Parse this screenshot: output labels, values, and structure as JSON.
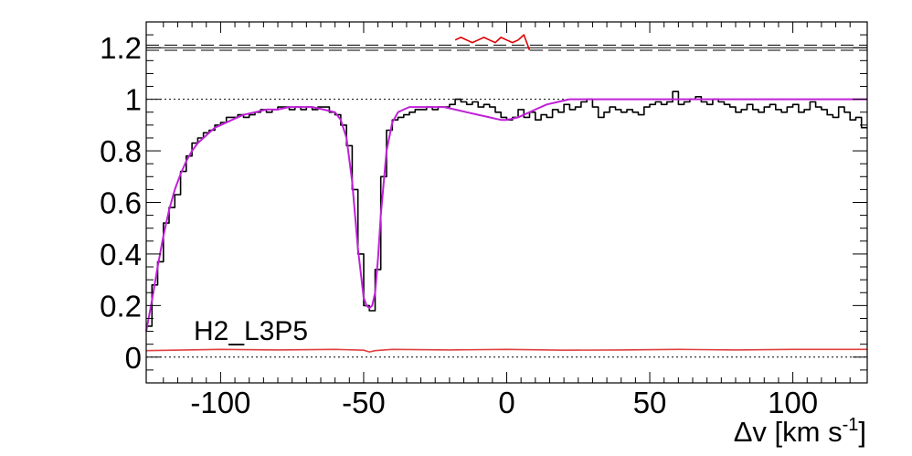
{
  "chart_data": {
    "type": "line",
    "annotation": "H2_L3P5",
    "xlim": [
      -126,
      126
    ],
    "ylim": [
      -0.1,
      1.3
    ],
    "x_ticks": [
      -100,
      -50,
      0,
      50,
      100
    ],
    "y_ticks": [
      0,
      0.2,
      0.4,
      0.6,
      0.8,
      1,
      1.2
    ],
    "x_tick_labels": [
      "-100",
      "-50",
      "0",
      "50",
      "100"
    ],
    "y_tick_labels": [
      "0",
      "0.2",
      "0.4",
      "0.6",
      "0.8",
      "1",
      "1.2"
    ],
    "reference_lines": [
      {
        "y": 1.0,
        "style": "dotted"
      },
      {
        "y": 0.0,
        "style": "dotted"
      },
      {
        "y": 1.21,
        "style": "dashed"
      },
      {
        "y": 1.19,
        "style": "dashed"
      },
      {
        "y": 1.2,
        "style": "solid"
      }
    ],
    "series": [
      {
        "style": "step",
        "color": "#000000",
        "x": [
          -126,
          -124,
          -122,
          -120,
          -118,
          -116,
          -114,
          -112,
          -110,
          -108,
          -106,
          -104,
          -102,
          -100,
          -98,
          -96,
          -94,
          -92,
          -90,
          -88,
          -86,
          -84,
          -82,
          -80,
          -78,
          -76,
          -74,
          -72,
          -70,
          -68,
          -66,
          -64,
          -62,
          -60,
          -58,
          -56,
          -54,
          -52,
          -50,
          -48,
          -46,
          -44,
          -42,
          -40,
          -38,
          -36,
          -34,
          -32,
          -30,
          -28,
          -26,
          -24,
          -22,
          -20,
          -18,
          -16,
          -14,
          -12,
          -10,
          -8,
          -6,
          -4,
          -2,
          0,
          2,
          4,
          6,
          8,
          10,
          12,
          14,
          16,
          18,
          20,
          22,
          24,
          26,
          28,
          30,
          32,
          34,
          36,
          38,
          40,
          42,
          44,
          46,
          48,
          50,
          52,
          54,
          56,
          58,
          60,
          62,
          64,
          66,
          68,
          70,
          72,
          74,
          76,
          78,
          80,
          82,
          84,
          86,
          88,
          90,
          92,
          94,
          96,
          98,
          100,
          102,
          104,
          106,
          108,
          110,
          112,
          114,
          116,
          118,
          120,
          122,
          124
        ],
        "y": [
          0.12,
          0.28,
          0.37,
          0.52,
          0.58,
          0.63,
          0.72,
          0.78,
          0.83,
          0.85,
          0.87,
          0.88,
          0.9,
          0.91,
          0.93,
          0.93,
          0.94,
          0.93,
          0.94,
          0.95,
          0.96,
          0.95,
          0.96,
          0.97,
          0.97,
          0.96,
          0.97,
          0.96,
          0.97,
          0.96,
          0.97,
          0.97,
          0.95,
          0.94,
          0.9,
          0.82,
          0.65,
          0.4,
          0.2,
          0.18,
          0.34,
          0.7,
          0.88,
          0.92,
          0.93,
          0.94,
          0.95,
          0.96,
          0.96,
          0.97,
          0.96,
          0.97,
          0.97,
          0.98,
          1.0,
          0.99,
          0.98,
          0.99,
          0.97,
          0.98,
          0.97,
          0.95,
          0.93,
          0.92,
          0.93,
          0.96,
          0.93,
          0.95,
          0.92,
          0.94,
          0.93,
          0.96,
          0.95,
          0.98,
          0.96,
          0.97,
          0.99,
          1.0,
          0.97,
          0.93,
          0.95,
          0.97,
          0.96,
          0.95,
          0.96,
          0.95,
          0.94,
          0.97,
          0.98,
          0.99,
          0.98,
          0.99,
          1.03,
          0.98,
          0.99,
          1.0,
          1.01,
          0.99,
          0.98,
          1.0,
          0.99,
          0.98,
          0.97,
          0.95,
          0.96,
          0.98,
          0.96,
          0.95,
          0.97,
          0.98,
          0.96,
          0.95,
          0.97,
          0.98,
          0.95,
          0.96,
          0.99,
          0.97,
          0.96,
          0.94,
          0.93,
          0.97,
          0.95,
          0.92,
          0.93,
          0.89
        ]
      },
      {
        "style": "smooth",
        "color": "#c020d8",
        "x": [
          -126,
          -124,
          -122,
          -120,
          -118,
          -116,
          -114,
          -112,
          -110,
          -108,
          -106,
          -104,
          -102,
          -100,
          -96,
          -92,
          -88,
          -84,
          -80,
          -76,
          -72,
          -68,
          -64,
          -60,
          -58,
          -56,
          -54,
          -52,
          -50,
          -49,
          -48,
          -47,
          -46,
          -45,
          -44,
          -42,
          -40,
          -38,
          -36,
          -34,
          -30,
          -26,
          -22,
          -18,
          -14,
          -10,
          -6,
          -4,
          -2,
          0,
          2,
          4,
          6,
          8,
          10,
          14,
          18,
          22,
          26,
          30,
          40,
          50,
          60,
          70,
          80,
          90,
          100,
          110,
          120,
          126
        ],
        "y": [
          0.1,
          0.22,
          0.35,
          0.47,
          0.57,
          0.65,
          0.71,
          0.76,
          0.8,
          0.83,
          0.85,
          0.87,
          0.89,
          0.9,
          0.92,
          0.94,
          0.95,
          0.96,
          0.96,
          0.97,
          0.97,
          0.97,
          0.96,
          0.95,
          0.92,
          0.85,
          0.68,
          0.42,
          0.23,
          0.2,
          0.19,
          0.2,
          0.25,
          0.38,
          0.55,
          0.8,
          0.91,
          0.95,
          0.96,
          0.97,
          0.97,
          0.97,
          0.97,
          0.96,
          0.95,
          0.94,
          0.93,
          0.925,
          0.92,
          0.92,
          0.925,
          0.93,
          0.94,
          0.95,
          0.96,
          0.98,
          0.99,
          1.0,
          1.0,
          1.0,
          1.0,
          1.0,
          1.0,
          1.0,
          1.0,
          1.0,
          1.0,
          1.0,
          1.0,
          1.0
        ]
      },
      {
        "style": "line",
        "color": "#e04040",
        "x": [
          -126,
          -100,
          -80,
          -60,
          -50,
          -48,
          -46,
          -40,
          -20,
          0,
          20,
          40,
          60,
          80,
          100,
          126
        ],
        "y": [
          0.025,
          0.03,
          0.028,
          0.03,
          0.027,
          0.02,
          0.025,
          0.03,
          0.028,
          0.03,
          0.027,
          0.028,
          0.03,
          0.028,
          0.03,
          0.03
        ]
      },
      {
        "style": "line",
        "color": "#dd0000",
        "x": [
          -18,
          -16,
          -14,
          -12,
          -10,
          -8,
          -6,
          -4,
          -2,
          0,
          2,
          4,
          6,
          8
        ],
        "y": [
          1.23,
          1.24,
          1.23,
          1.22,
          1.23,
          1.24,
          1.23,
          1.22,
          1.24,
          1.23,
          1.22,
          1.23,
          1.25,
          1.19
        ]
      }
    ],
    "xlabel_parts": {
      "main": "Δv [km s",
      "sup": "-1",
      "close": "]"
    }
  }
}
